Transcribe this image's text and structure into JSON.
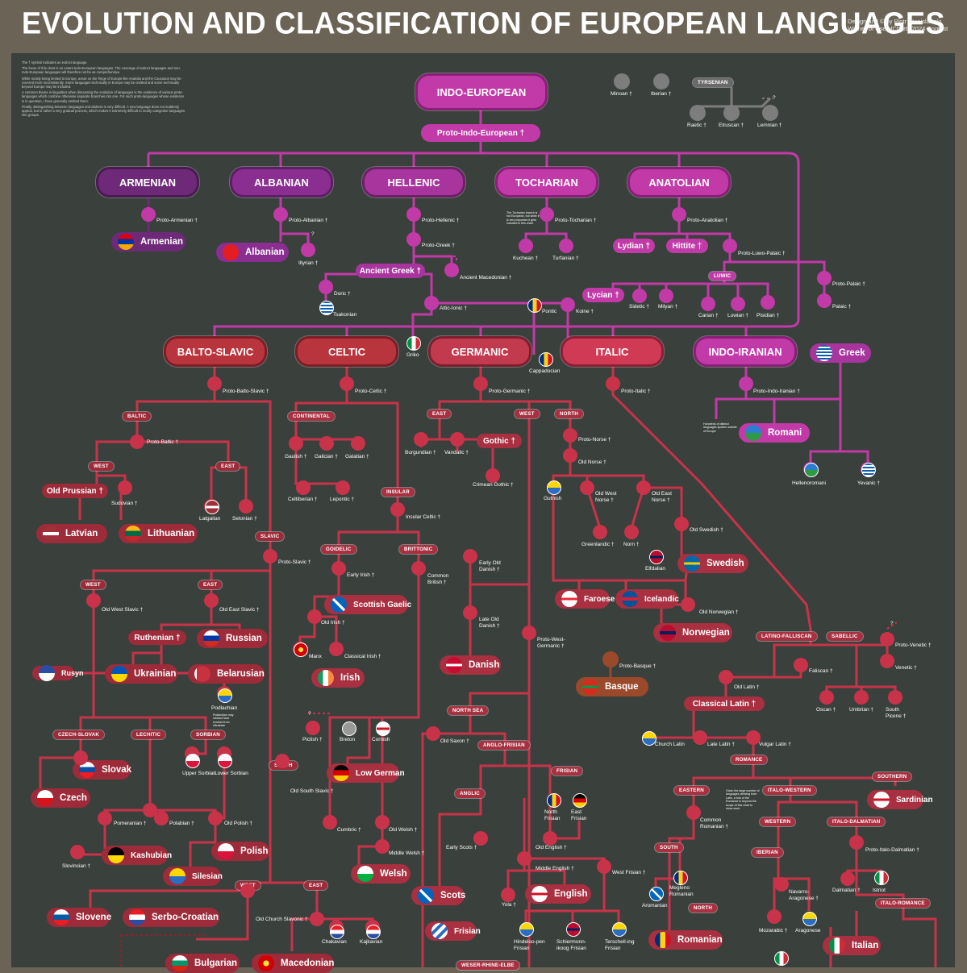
{
  "header": {
    "title": "EVOLUTION AND CLASSIFICATION OF EUROPEAN LANGUAGES",
    "credit_line1": "Design and © by Piotr Stanislawski",
    "credit_line2": "Winner of UsefulCharts 2024 Contest"
  },
  "intro": [
    "The † symbol indicates an extinct language.",
    "The focus of this chart is on extant Indo-European languages. The coverage of extinct languages and non-Indo-European languages will therefore not be as comprehensive.",
    "While mostly being limited to Europe, areas on the fringe of Europe like Anatolia and the Caucasus may be covered more inconsistently. Some languages technically in Europe may be omitted and some technically beyond Europe may be included.",
    "A common theme in linguistics when discussing the evolution of languages is the existence of various proto-languages which combine otherwise separate branches into one. For such proto-languages whose existence is in question, I have generally omitted them.",
    "Finally, distinguishing between languages and dialects is very difficult. A new language does not suddenly appear, but is rather a very gradual process, which makes it extremely difficult to neatly categorise languages into groups."
  ],
  "colors": {
    "background": "#3a403c",
    "anatolian_branch": "#c23aa8",
    "armenian_dark": "#6e2a78",
    "european_branch": "#c8334a",
    "isolate": "#7d7d7d",
    "basque": "#9a4a2a"
  },
  "root": {
    "group": "INDO-EUROPEAN",
    "proto": "Proto-Indo-European †"
  },
  "isolates": {
    "minoan": "Minoan †",
    "iberian": "Iberian †",
    "tyrsenian": "TYRSENIAN",
    "raetic": "Raetic †",
    "etruscan": "Etruscan †",
    "lemnian": "Lemnian †",
    "q": "?"
  },
  "groups": {
    "armenian": "ARMENIAN",
    "albanian": "ALBANIAN",
    "hellenic": "HELLENIC",
    "tocharian": "TOCHARIAN",
    "anatolian": "ANATOLIAN",
    "balto_slavic": "BALTO-SLAVIC",
    "celtic": "CELTIC",
    "germanic": "GERMANIC",
    "italic": "ITALIC",
    "indo_iranian": "INDO-IRANIAN"
  },
  "languages": {
    "armenian": "Armenian",
    "albanian": "Albanian",
    "greek": "Greek",
    "romani": "Romani",
    "latvian": "Latvian",
    "lithuanian": "Lithuanian",
    "russian": "Russian",
    "ukrainian": "Ukrainian",
    "belarusian": "Belarusian",
    "slovak": "Slovak",
    "czech": "Czech",
    "polish": "Polish",
    "kashubian": "Kashubian",
    "silesian": "Silesian",
    "slovene": "Slovene",
    "serbo_croatian": "Serbo-Croatian",
    "bulgarian": "Bulgarian",
    "macedonian": "Macedonian",
    "scottish_gaelic": "Scottish Gaelic",
    "irish": "Irish",
    "welsh": "Welsh",
    "low_german": "Low German",
    "danish": "Danish",
    "scots": "Scots",
    "english": "English",
    "frisian": "Frisian",
    "faroese": "Faroese",
    "icelandic": "Icelandic",
    "swedish": "Swedish",
    "norwegian": "Norwegian",
    "basque": "Basque",
    "romanian": "Romanian",
    "italian": "Italian",
    "sardinian": "Sardinian",
    "ancient_greek": "Ancient Greek †",
    "gothic": "Gothic †",
    "old_prussian": "Old Prussian †",
    "ruthenian": "Ruthenian †",
    "lydian": "Lydian †",
    "hittite": "Hittite †",
    "lycian": "Lycian †",
    "classical_latin": "Classical Latin †",
    "rusyn": "Rusyn"
  },
  "headers": {
    "luwic": "LUWIC",
    "baltic": "BALTIC",
    "west": "WEST",
    "east": "EAST",
    "slavic": "SLAVIC",
    "continental": "CONTINENTAL",
    "insular": "INSULAR",
    "goidelic": "GOIDELIC",
    "brittonic": "BRITTONIC",
    "north": "NORTH",
    "north_sea": "NORTH SEA",
    "anglo_frisian": "ANGLO-FRISIAN",
    "anglic": "ANGLIC",
    "frisian": "FRISIAN",
    "weser": "WESER-RHINE-ELBE",
    "czech_slovak": "CZECH-SLOVAK",
    "lechitic": "LECHITIC",
    "sorbian": "SORBIAN",
    "south": "SOUTH",
    "latino_faliscan": "LATINO-FALLISCAN",
    "sabellic": "SABELLIC",
    "romance": "ROMANCE",
    "eastern": "EASTERN",
    "italo_western": "ITALO-WESTERN",
    "southern": "SOUTHERN",
    "western": "WESTERN",
    "italo_dalmatian": "ITALO-DALMATIAN",
    "iberian": "IBERIAN",
    "italo_romance": "ITALO-ROMANCE"
  },
  "labels": {
    "proto_armenian": "Proto-Armenian †",
    "proto_albanian": "Proto-Albanian †",
    "illyrian": "Illyrian †",
    "proto_hellenic": "Proto-Hellenic †",
    "proto_greek": "Proto-Greek †",
    "ancient_macedonian": "Ancient Macedonian †",
    "doric": "Doric †",
    "tsakonian": "Tsakonian",
    "attic_ionic": "Attic-Ionic †",
    "pontic": "Pontic",
    "koine": "Koine †",
    "griko": "Griko",
    "cappadocian": "Cappadocian",
    "proto_tocharian": "Proto-Tocharian †",
    "kuchean": "Kuchean †",
    "turfanian": "Turfanian †",
    "tocharian_note": "The Tocharian branch is not European, but while it is very important it gets included in this chart.",
    "proto_anatolian": "Proto-Anatolian †",
    "proto_luwo_palaic": "Proto-Luwo-Palaic †",
    "proto_palaic": "Proto-Palaic †",
    "palaic": "Palaic †",
    "sidetic": "Sidetic †",
    "milyan": "Milyan †",
    "carian": "Carian †",
    "luwian": "Luwian †",
    "pisidian": "Pisidian †",
    "proto_indo_iranian": "Proto-Indo-Iranian †",
    "indo_note": "Hundreds of distinct languages spoken outside of Europe",
    "hellenoromani": "Hellenoromani",
    "yevanic": "Yevanic †",
    "proto_balto_slavic": "Proto-Balto-Slavic †",
    "proto_baltic": "Proto-Baltic †",
    "sudovian": "Sudovian †",
    "latgalian": "Latgalian",
    "selonian": "Selonian †",
    "proto_slavic": "Proto-Slavic †",
    "old_west_slavic": "Old West Slavic †",
    "old_east_slavic": "Old East Slavic †",
    "podlachian": "Podlachian",
    "podlachian_note": "Podlachian may instead have evolved from Ukrainian",
    "pomeranian": "Pomeranian †",
    "polabian": "Polabian †",
    "old_polish": "Old Polish †",
    "slovincian": "Slovincian †",
    "upper_sorbian": "Upper Sorbian",
    "lower_sorbian": "Lower Sorbian",
    "old_south_slavic": "Old South Slavic †",
    "old_church_slavonic": "Old Church Slavonic †",
    "chakavian": "Chakavian",
    "kajkavian": "Kajkavian",
    "proto_celtic": "Proto-Celtic †",
    "gaulish": "Gaulish †",
    "galician": "Galician †",
    "galatian": "Galatian †",
    "celtiberian": "Celtiberian †",
    "lepontic": "Lepontic †",
    "insular_celtic": "Insular Celtic †",
    "early_irish": "Early Irish †",
    "common_british": "Common British †",
    "old_irish": "Old Irish †",
    "manx": "Manx",
    "classical_irish": "Classical Irish †",
    "pictish": "Pictish †",
    "breton": "Breton",
    "cornish": "Cornish",
    "cumbric": "Cumbric †",
    "old_welsh": "Old Welsh †",
    "middle_welsh": "Middle Welsh †",
    "proto_germanic": "Proto-Germanic †",
    "east": "EAST",
    "west_g": "WEST",
    "burgundian": "Burgundian †",
    "vandalic": "Vandalic †",
    "crimean_gothic": "Crimean Gothic †",
    "proto_norse": "Proto-Norse †",
    "old_norse": "Old Norse †",
    "gutnish": "Gutnish",
    "old_west_norse": "Old West Norse †",
    "old_east_norse": "Old East Norse †",
    "greenlandic": "Greenlandic †",
    "norn": "Norn †",
    "old_swedish": "Old Swedish †",
    "elfdalian": "Elfdalian",
    "old_norwegian": "Old Norwegian †",
    "early_old_danish": "Early Old Danish †",
    "late_old_danish": "Late Old Danish †",
    "proto_west_germanic": "Proto-West-Germanic †",
    "old_saxon": "Old Saxon †",
    "early_scots": "Early Scots †",
    "old_english": "Old English †",
    "middle_english": "Middle English †",
    "yola": "Yola †",
    "north_frisian": "North Frisian",
    "east_frisian": "East Frisian",
    "west_frisian_old": "West Frisian †",
    "hindeloopen": "Hindeloo-pen Frisian",
    "schiermonnikoog": "Schiermonn-ikoog Frisian",
    "terschelling": "Terschell-ing Frisian",
    "proto_basque": "Proto-Basque †",
    "proto_italic": "Proto-Italic †",
    "faliscan": "Faliscan †",
    "old_latin": "Old Latin †",
    "proto_venetic": "Proto-Venetic †",
    "venetic": "Venetic †",
    "oscan": "Oscan †",
    "umbrian": "Umbrian †",
    "south_picene": "South Picene †",
    "church_latin": "Church Latin",
    "late_latin": "Late Latin †",
    "vulgar_latin": "Vulgar Latin †",
    "common_romanian": "Common Romanian †",
    "romance_note": "Given the large number of languages deriving from Latin, a fork of the Romance is beyond the scope of this chart to show each.",
    "megleno_romanian": "Megleno Romanian",
    "aromanian": "Aromanian",
    "navarro_aragonese": "Navarro-Aragonese †",
    "mozarabic": "Mozarabic †",
    "aragonese": "Aragonese",
    "dalmatian": "Dalmatian †",
    "istriot": "Istriot",
    "proto_italo_dalmatian": "Proto-Italo-Dalmatian †",
    "q": "?"
  }
}
